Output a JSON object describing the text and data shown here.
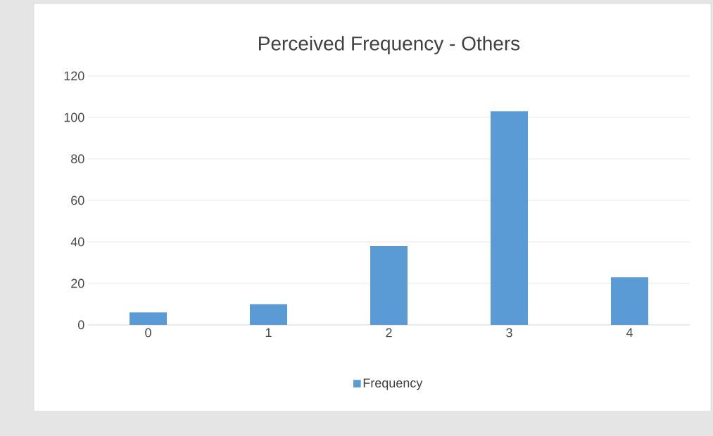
{
  "chart_data": {
    "type": "bar",
    "title": "Perceived Frequency - Others",
    "categories": [
      "0",
      "1",
      "2",
      "3",
      "4"
    ],
    "series": [
      {
        "name": "Frequency",
        "color": "#5b9bd5",
        "values": [
          6,
          10,
          38,
          103,
          23
        ]
      }
    ],
    "ylim": [
      0,
      120
    ],
    "yticks": [
      0,
      20,
      40,
      60,
      80,
      100,
      120
    ],
    "grid": "y",
    "legend": "bottom"
  }
}
